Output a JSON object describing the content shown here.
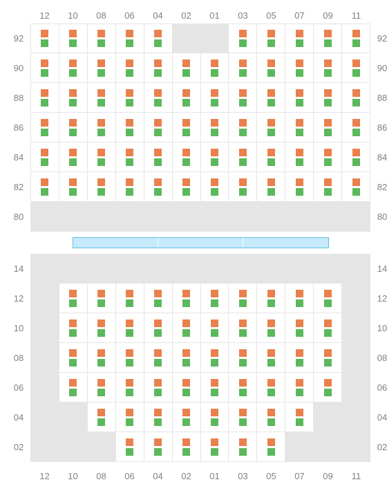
{
  "colors": {
    "orange": "#e9804d",
    "green": "#5cb85c",
    "empty": "#e5e5e5",
    "stage": "#c6e9fc",
    "stage_border": "#5bc0de",
    "label": "#808080"
  },
  "columns": [
    "12",
    "10",
    "08",
    "06",
    "04",
    "02",
    "01",
    "03",
    "05",
    "07",
    "09",
    "11"
  ],
  "upper": {
    "rows": [
      "92",
      "90",
      "88",
      "86",
      "84",
      "82",
      "80"
    ],
    "seats": [
      [
        1,
        1,
        1,
        1,
        1,
        0,
        0,
        1,
        1,
        1,
        1,
        1
      ],
      [
        1,
        1,
        1,
        1,
        1,
        1,
        1,
        1,
        1,
        1,
        1,
        1
      ],
      [
        1,
        1,
        1,
        1,
        1,
        1,
        1,
        1,
        1,
        1,
        1,
        1
      ],
      [
        1,
        1,
        1,
        1,
        1,
        1,
        1,
        1,
        1,
        1,
        1,
        1
      ],
      [
        1,
        1,
        1,
        1,
        1,
        1,
        1,
        1,
        1,
        1,
        1,
        1
      ],
      [
        1,
        1,
        1,
        1,
        1,
        1,
        1,
        1,
        1,
        1,
        1,
        1
      ],
      [
        0,
        0,
        0,
        0,
        0,
        0,
        0,
        0,
        0,
        0,
        0,
        0
      ]
    ]
  },
  "lower": {
    "rows": [
      "14",
      "12",
      "10",
      "08",
      "06",
      "04",
      "02"
    ],
    "seats": [
      [
        0,
        0,
        0,
        0,
        0,
        0,
        0,
        0,
        0,
        0,
        0,
        0
      ],
      [
        0,
        1,
        1,
        1,
        1,
        1,
        1,
        1,
        1,
        1,
        1,
        0
      ],
      [
        0,
        1,
        1,
        1,
        1,
        1,
        1,
        1,
        1,
        1,
        1,
        0
      ],
      [
        0,
        1,
        1,
        1,
        1,
        1,
        1,
        1,
        1,
        1,
        1,
        0
      ],
      [
        0,
        1,
        1,
        1,
        1,
        1,
        1,
        1,
        1,
        1,
        1,
        0
      ],
      [
        0,
        0,
        1,
        1,
        1,
        1,
        1,
        1,
        1,
        1,
        0,
        0
      ],
      [
        0,
        0,
        0,
        1,
        1,
        1,
        1,
        1,
        1,
        0,
        0,
        0
      ]
    ]
  },
  "stage_segments": 3
}
